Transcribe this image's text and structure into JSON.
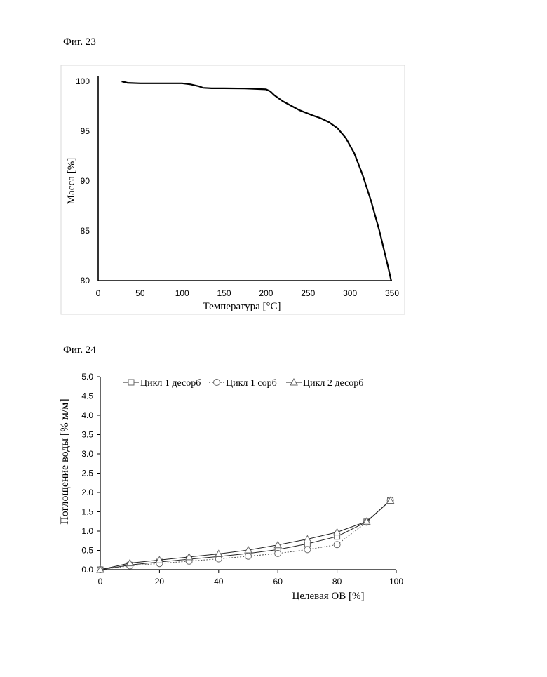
{
  "figures": [
    {
      "title": "Фиг. 23"
    },
    {
      "title": "Фиг. 24"
    }
  ],
  "chart_data": [
    {
      "type": "line",
      "xlabel": "Температура [°C]",
      "ylabel": "Масса [%]",
      "xlim": [
        0,
        350
      ],
      "ylim": [
        80,
        100
      ],
      "xticks": [
        0,
        50,
        100,
        150,
        200,
        250,
        300,
        350
      ],
      "yticks": [
        80,
        85,
        90,
        95,
        100
      ],
      "xtick_labels": [
        "0",
        "50",
        "100",
        "150",
        "200",
        "250",
        "300",
        "350"
      ],
      "ytick_labels": [
        "80",
        "85",
        "90",
        "95",
        "100"
      ],
      "grid": false,
      "colors": {
        "line": "#000000",
        "frame": "#d9d9d9"
      },
      "series": [
        {
          "x": [
            28,
            35,
            50,
            75,
            100,
            110,
            120,
            125,
            135,
            150,
            175,
            200,
            205,
            210,
            220,
            240,
            255,
            265,
            275,
            285,
            295,
            305,
            315,
            325,
            335,
            345,
            349
          ],
          "values": [
            100,
            99.85,
            99.8,
            99.8,
            99.8,
            99.7,
            99.5,
            99.35,
            99.3,
            99.3,
            99.28,
            99.2,
            99.0,
            98.6,
            98.0,
            97.1,
            96.6,
            96.3,
            95.9,
            95.3,
            94.3,
            92.8,
            90.6,
            88.0,
            85.0,
            81.5,
            80
          ]
        }
      ]
    },
    {
      "type": "line",
      "xlabel": "Целевая ОВ [%]",
      "ylabel": "Поглощение воды [% м/м]",
      "xlim": [
        0,
        100
      ],
      "ylim": [
        0,
        5
      ],
      "xticks": [
        0,
        20,
        40,
        60,
        80,
        100
      ],
      "yticks": [
        0,
        0.5,
        1,
        1.5,
        2,
        2.5,
        3,
        3.5,
        4,
        4.5,
        5
      ],
      "xtick_labels": [
        "0",
        "20",
        "40",
        "60",
        "80",
        "100"
      ],
      "ytick_labels": [
        "0.0",
        "0.5",
        "1.0",
        "1.5",
        "2.0",
        "2.5",
        "3.0",
        "3.5",
        "4.0",
        "4.5",
        "5.0"
      ],
      "grid": false,
      "legend": "top",
      "series": [
        {
          "name": "Цикл 1 десорб",
          "marker": "square",
          "dash": "solid",
          "x": [
            0,
            10,
            20,
            30,
            40,
            50,
            60,
            70,
            80,
            90,
            98
          ],
          "values": [
            0,
            0.12,
            0.2,
            0.27,
            0.34,
            0.42,
            0.52,
            0.67,
            0.86,
            1.24,
            1.8
          ]
        },
        {
          "name": "Цикл 1 сорб",
          "marker": "circle",
          "dash": "dotted",
          "x": [
            0,
            10,
            20,
            30,
            40,
            50,
            60,
            70,
            80,
            90,
            98
          ],
          "values": [
            0,
            0.1,
            0.16,
            0.22,
            0.28,
            0.35,
            0.42,
            0.52,
            0.65,
            1.23,
            1.8
          ]
        },
        {
          "name": "Цикл 2 десорб",
          "marker": "triangle",
          "dash": "solid",
          "x": [
            0,
            10,
            20,
            30,
            40,
            50,
            60,
            70,
            80,
            90,
            98
          ],
          "values": [
            0,
            0.17,
            0.25,
            0.33,
            0.41,
            0.51,
            0.64,
            0.79,
            0.97,
            1.25,
            1.79
          ]
        }
      ]
    }
  ]
}
